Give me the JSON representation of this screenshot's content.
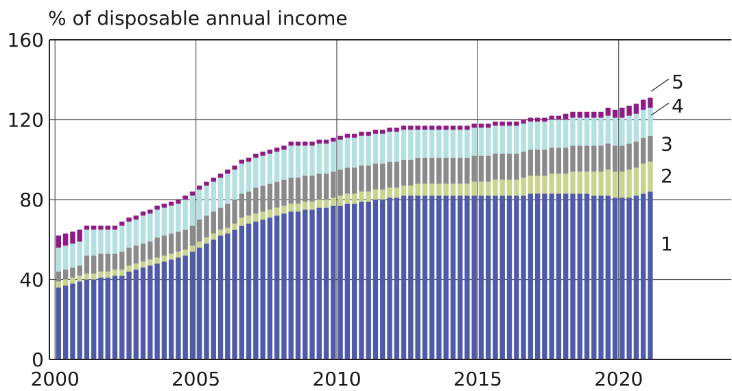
{
  "chart_data": {
    "type": "bar",
    "stacked": true,
    "ylabel": "% of disposable annual income",
    "ylim": [
      0,
      160
    ],
    "yticks": [
      "0",
      "40",
      "80",
      "120",
      "160"
    ],
    "xlim": [
      1999.8,
      2024
    ],
    "xticks": [
      {
        "value": 2000,
        "label": "2000"
      },
      {
        "value": 2005,
        "label": "2005"
      },
      {
        "value": 2010,
        "label": "2010"
      },
      {
        "value": 2015,
        "label": "2015"
      },
      {
        "value": 2020,
        "label": "2020"
      }
    ],
    "grid": true,
    "x_start": 2000.0,
    "x_step": 0.25,
    "series": [
      {
        "name": "1",
        "color": "#4f5aa9",
        "values": [
          36,
          37,
          38,
          39,
          40,
          40,
          41,
          41,
          42,
          42,
          44,
          45,
          46,
          47,
          48,
          49,
          50,
          51,
          52,
          54,
          56,
          58,
          60,
          62,
          63,
          65,
          67,
          68,
          69,
          70,
          71,
          72,
          73,
          74,
          74,
          75,
          75,
          76,
          76,
          77,
          77,
          78,
          78,
          79,
          79,
          80,
          80,
          81,
          81,
          82,
          82,
          82,
          82,
          82,
          82,
          82,
          82,
          82,
          82,
          82,
          82,
          82,
          82,
          82,
          82,
          82,
          82,
          83,
          83,
          83,
          83,
          83,
          83,
          83,
          83,
          83,
          82,
          82,
          82,
          81,
          81,
          81,
          82,
          83,
          84
        ]
      },
      {
        "name": "2",
        "color": "#c9d58f",
        "values": [
          3,
          3,
          3,
          3,
          3,
          3,
          3,
          3,
          3,
          3,
          3,
          3,
          3,
          3,
          3,
          3,
          3,
          3,
          3,
          3,
          3,
          3,
          3,
          3,
          3,
          3,
          4,
          4,
          4,
          4,
          4,
          4,
          4,
          4,
          4,
          4,
          4,
          4,
          4,
          4,
          5,
          5,
          5,
          5,
          5,
          5,
          5,
          5,
          5,
          5,
          5,
          6,
          6,
          6,
          6,
          6,
          6,
          6,
          6,
          7,
          7,
          7,
          8,
          8,
          8,
          8,
          9,
          9,
          9,
          9,
          10,
          10,
          10,
          11,
          11,
          11,
          12,
          12,
          13,
          13,
          13,
          14,
          14,
          15,
          15
        ]
      },
      {
        "name": "3",
        "color": "#8a8a8a",
        "values": [
          5,
          5,
          5,
          5,
          9,
          9,
          9,
          9,
          8,
          9,
          9,
          9,
          9,
          9,
          10,
          10,
          10,
          10,
          10,
          10,
          11,
          11,
          11,
          11,
          12,
          12,
          12,
          12,
          13,
          13,
          13,
          13,
          13,
          13,
          13,
          13,
          13,
          13,
          13,
          13,
          13,
          13,
          13,
          13,
          13,
          13,
          13,
          13,
          13,
          13,
          13,
          13,
          13,
          13,
          13,
          13,
          13,
          13,
          13,
          13,
          13,
          13,
          13,
          13,
          13,
          13,
          13,
          13,
          13,
          13,
          13,
          13,
          13,
          13,
          13,
          13,
          13,
          13,
          13,
          13,
          13,
          13,
          13,
          13,
          13
        ]
      },
      {
        "name": "4",
        "color": "#b4e0e2",
        "values": [
          12,
          12,
          12,
          12,
          13,
          13,
          12,
          12,
          12,
          13,
          13,
          13,
          14,
          14,
          14,
          14,
          14,
          14,
          15,
          15,
          15,
          15,
          15,
          15,
          15,
          15,
          15,
          15,
          15,
          15,
          15,
          15,
          15,
          16,
          16,
          15,
          15,
          15,
          15,
          15,
          15,
          15,
          15,
          15,
          15,
          15,
          15,
          15,
          15,
          15,
          15,
          14,
          14,
          14,
          14,
          14,
          14,
          14,
          14,
          14,
          14,
          14,
          14,
          14,
          14,
          14,
          14,
          14,
          14,
          14,
          14,
          14,
          14,
          14,
          14,
          14,
          14,
          14,
          14,
          14,
          14,
          14,
          14,
          14,
          14
        ]
      },
      {
        "name": "5",
        "color": "#8e1a86",
        "values": [
          6,
          6,
          6,
          6,
          2,
          2,
          2,
          2,
          2,
          2,
          2,
          2,
          2,
          2,
          2,
          2,
          2,
          2,
          2,
          2,
          2,
          2,
          2,
          2,
          2,
          2,
          2,
          2,
          2,
          2,
          2,
          2,
          2,
          2,
          2,
          2,
          2,
          2,
          2,
          2,
          2,
          2,
          2,
          2,
          2,
          2,
          2,
          2,
          2,
          2,
          2,
          2,
          2,
          2,
          2,
          2,
          2,
          2,
          2,
          2,
          2,
          2,
          2,
          2,
          2,
          2,
          2,
          2,
          2,
          2,
          2,
          2,
          3,
          3,
          3,
          3,
          3,
          3,
          4,
          4,
          5,
          5,
          5,
          5,
          5
        ]
      }
    ],
    "series_labels": [
      {
        "text": "1",
        "y": 58,
        "pointer": false
      },
      {
        "text": "2",
        "y": 92,
        "pointer": false
      },
      {
        "text": "3",
        "y": 108,
        "pointer": false
      },
      {
        "text": "4",
        "y": 127,
        "pointer": true
      },
      {
        "text": "5",
        "y": 139,
        "pointer": true
      }
    ]
  }
}
